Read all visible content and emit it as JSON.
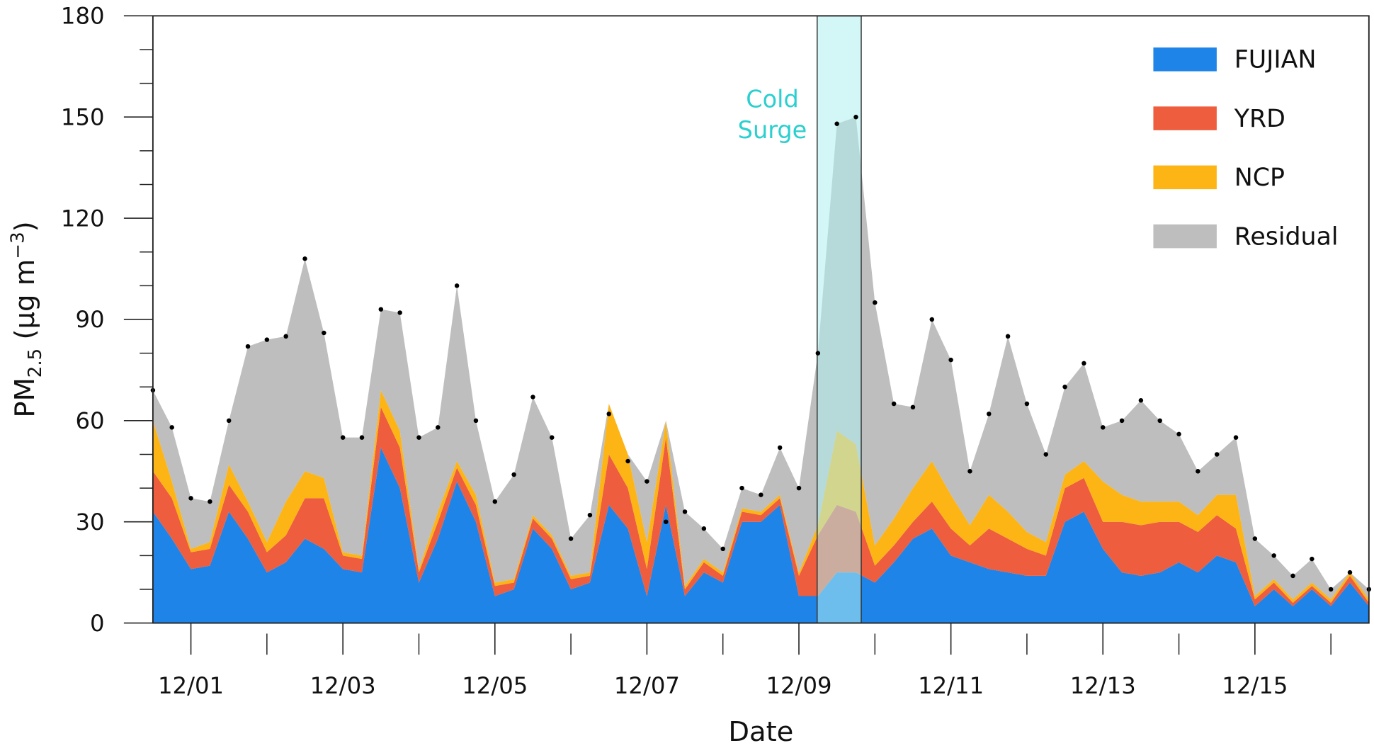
{
  "chart_data": {
    "type": "stacked_area",
    "xlabel": "Date",
    "ylabel": [
      "PM",
      "2.5",
      " (μg m",
      "−3",
      ")"
    ],
    "annotation": [
      "Cold",
      "Surge"
    ],
    "highlight": {
      "xlim": [
        9.24,
        9.82
      ],
      "color": "#aeeef0"
    },
    "x": [
      0.5,
      0.75,
      1,
      1.25,
      1.5,
      1.75,
      2,
      2.25,
      2.5,
      2.75,
      3,
      3.25,
      3.5,
      3.75,
      4,
      4.25,
      4.5,
      4.75,
      5,
      5.25,
      5.5,
      5.75,
      6,
      6.25,
      6.5,
      6.75,
      7,
      7.25,
      7.5,
      7.75,
      8,
      8.25,
      8.5,
      8.75,
      9,
      9.25,
      9.5,
      9.75,
      10,
      10.25,
      10.5,
      10.75,
      11,
      11.25,
      11.5,
      11.75,
      12,
      12.25,
      12.5,
      12.75,
      13,
      13.25,
      13.5,
      13.75,
      14,
      14.25,
      14.5,
      14.75,
      15,
      15.25,
      15.5,
      15.75,
      16,
      16.25,
      16.5
    ],
    "xlim": [
      0.5,
      16.5
    ],
    "xticks": [
      {
        "value": 1,
        "label": "12/01"
      },
      {
        "value": 3,
        "label": "12/03"
      },
      {
        "value": 5,
        "label": "12/05"
      },
      {
        "value": 7,
        "label": "12/07"
      },
      {
        "value": 9,
        "label": "12/09"
      },
      {
        "value": 11,
        "label": "12/11"
      },
      {
        "value": 13,
        "label": "12/13"
      },
      {
        "value": 15,
        "label": "12/15"
      }
    ],
    "xminor_ticks": [
      2,
      4,
      6,
      8,
      10,
      12,
      14,
      16
    ],
    "ylim": [
      0,
      180
    ],
    "yticks": [
      0,
      30,
      60,
      90,
      120,
      150,
      180
    ],
    "yminor_ticks": [
      10,
      20,
      40,
      50,
      70,
      80,
      100,
      110,
      130,
      140,
      160,
      170
    ],
    "legend": "top-right",
    "series": [
      {
        "name": "FUJIAN",
        "color": "#1f84e8",
        "values": [
          33,
          25,
          16,
          17,
          33,
          25,
          15,
          18,
          25,
          22,
          16,
          15,
          52,
          40,
          12,
          25,
          42,
          30,
          8,
          10,
          28,
          22,
          10,
          12,
          35,
          28,
          8,
          35,
          8,
          15,
          12,
          30,
          30,
          35,
          8,
          8,
          15,
          15,
          12,
          18,
          25,
          28,
          20,
          18,
          16,
          15,
          14,
          14,
          30,
          33,
          22,
          15,
          14,
          15,
          18,
          15,
          20,
          18,
          5,
          10,
          5,
          10,
          5,
          12,
          5
        ]
      },
      {
        "name": "YRD",
        "color": "#ee5d3d",
        "values": [
          12,
          12,
          5,
          5,
          8,
          8,
          6,
          8,
          12,
          15,
          4,
          4,
          12,
          12,
          3,
          5,
          4,
          5,
          3,
          2,
          3,
          3,
          3,
          2,
          15,
          12,
          8,
          20,
          2,
          3,
          2,
          3,
          2,
          2,
          6,
          18,
          20,
          18,
          5,
          5,
          5,
          8,
          8,
          5,
          12,
          10,
          8,
          6,
          10,
          10,
          8,
          15,
          15,
          15,
          12,
          12,
          12,
          10,
          2,
          2,
          1,
          1,
          1,
          2,
          1
        ]
      },
      {
        "name": "NCP",
        "color": "#fdb515",
        "values": [
          15,
          5,
          1,
          2,
          6,
          3,
          3,
          10,
          8,
          6,
          1,
          1,
          5,
          5,
          1,
          3,
          2,
          3,
          1,
          1,
          1,
          1,
          1,
          1,
          15,
          10,
          8,
          5,
          1,
          1,
          1,
          1,
          1,
          1,
          1,
          3,
          22,
          20,
          6,
          8,
          10,
          12,
          10,
          6,
          10,
          8,
          5,
          4,
          4,
          5,
          12,
          8,
          7,
          6,
          6,
          5,
          6,
          10,
          1,
          1,
          1,
          1,
          1,
          1,
          1
        ]
      },
      {
        "name": "Residual",
        "color": "#bebebe",
        "values": [
          9,
          16,
          15,
          12,
          13,
          46,
          60,
          49,
          63,
          43,
          34,
          35,
          24,
          35,
          39,
          25,
          52,
          22,
          24,
          31,
          35,
          29,
          11,
          17,
          0,
          0,
          18,
          0,
          22,
          9,
          7,
          6,
          5,
          14,
          25,
          51,
          91,
          97,
          72,
          34,
          24,
          42,
          40,
          16,
          24,
          52,
          38,
          26,
          26,
          29,
          16,
          22,
          30,
          24,
          20,
          13,
          12,
          17,
          17,
          7,
          7,
          7,
          3,
          0,
          3
        ]
      }
    ],
    "observed": {
      "color": "#000000",
      "values": [
        69,
        58,
        37,
        36,
        60,
        82,
        84,
        85,
        108,
        86,
        55,
        55,
        93,
        92,
        55,
        58,
        100,
        60,
        36,
        44,
        67,
        55,
        25,
        32,
        62,
        48,
        42,
        30,
        33,
        28,
        22,
        40,
        38,
        52,
        40,
        80,
        148,
        150,
        95,
        65,
        64,
        90,
        78,
        45,
        62,
        85,
        65,
        50,
        70,
        77,
        58,
        60,
        66,
        60,
        56,
        45,
        50,
        55,
        25,
        20,
        14,
        19,
        10,
        15,
        10
      ]
    }
  }
}
